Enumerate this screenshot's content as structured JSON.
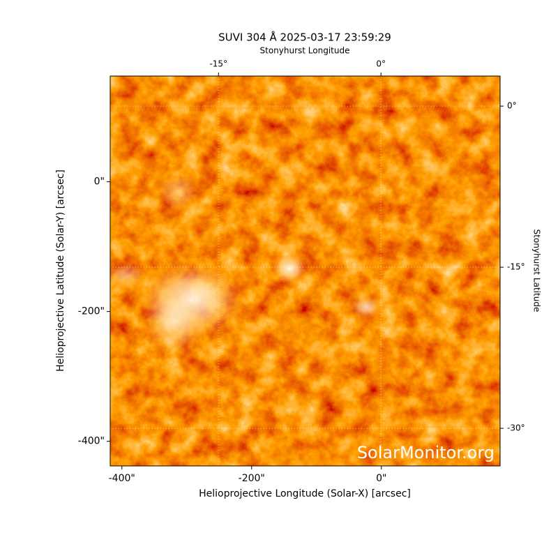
{
  "chart_data": {
    "type": "image",
    "title": "SUVI 304 Å 2025-03-17 23:59:29",
    "watermark": "SolarMonitor.org",
    "xlabel": "Helioprojective Longitude (Solar-X) [arcsec]",
    "ylabel": "Helioprojective Latitude (Solar-Y) [arcsec]",
    "x2label": "Stonyhurst Longitude",
    "y2label": "Stonyhurst Latitude",
    "xlim": [
      -418,
      183
    ],
    "ylim": [
      -438,
      163
    ],
    "xticks": [
      {
        "value": -400,
        "label": "-400\""
      },
      {
        "value": -200,
        "label": "-200\""
      },
      {
        "value": 0,
        "label": "0\""
      }
    ],
    "yticks": [
      {
        "value": -400,
        "label": "-400\""
      },
      {
        "value": -200,
        "label": "-200\""
      },
      {
        "value": 0,
        "label": "0\""
      }
    ],
    "x2lim": [
      -25,
      11
    ],
    "x2ticks": [
      {
        "value": -15,
        "label": "-15°"
      },
      {
        "value": 0,
        "label": "0°"
      }
    ],
    "y2lim": [
      -33.5,
      2.8
    ],
    "y2ticks": [
      {
        "value": 0,
        "label": "0°"
      },
      {
        "value": -15,
        "label": "-15°"
      },
      {
        "value": -30,
        "label": "-30°"
      }
    ],
    "grid": true
  }
}
